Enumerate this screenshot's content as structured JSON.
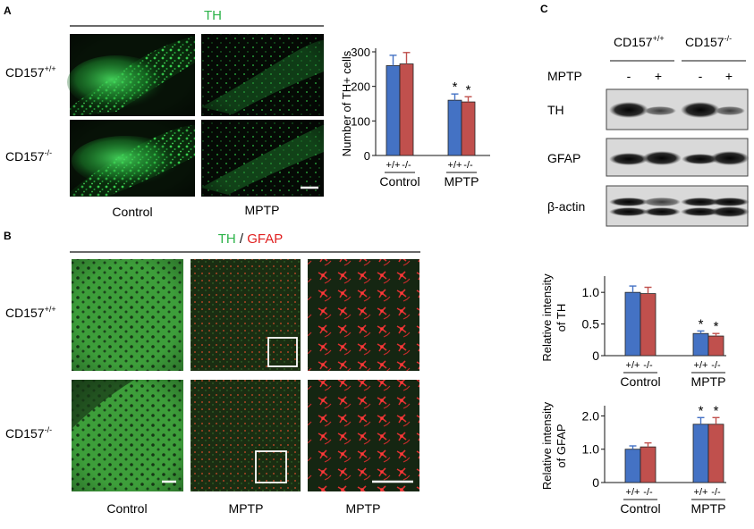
{
  "panel_a": {
    "label": "A",
    "stain": "TH",
    "rows": [
      "CD157",
      "CD157"
    ],
    "row_sup": [
      "+/+",
      "-/-"
    ],
    "cols": [
      "Control",
      "MPTP"
    ]
  },
  "panel_b": {
    "label": "B",
    "stain_1": "TH",
    "slash": " / ",
    "stain_2": "GFAP",
    "rows": [
      "CD157",
      "CD157"
    ],
    "row_sup": [
      "+/+",
      "-/-"
    ],
    "cols": [
      "Control",
      "MPTP",
      "MPTP"
    ]
  },
  "panel_c": {
    "label": "C",
    "groups": [
      "CD157",
      "CD157"
    ],
    "group_sup": [
      "+/+",
      "-/-"
    ],
    "mptp_label": "MPTP",
    "mptp_signs": [
      "-",
      "+",
      "-",
      "+"
    ],
    "blots": [
      "TH",
      "GFAP",
      "β-actin"
    ]
  },
  "colors": {
    "wt": "#4472c4",
    "ko": "#c0504d",
    "th_green": "#2db34a",
    "gfap_red": "#e02020"
  },
  "chart_data": [
    {
      "type": "bar",
      "title": "",
      "ylabel": "Number of TH+ cells",
      "ylim": [
        0,
        300
      ],
      "yticks": [
        "0",
        "100",
        "200",
        "300"
      ],
      "groups": [
        "Control",
        "MPTP"
      ],
      "group_ticks": [
        [
          "+/+",
          "-/-"
        ],
        [
          "+/+",
          "-/-"
        ]
      ],
      "series": [
        {
          "values": [
            260,
            160
          ],
          "errors": [
            30,
            18
          ]
        },
        {
          "values": [
            265,
            155
          ],
          "errors": [
            33,
            15
          ]
        }
      ],
      "significance": [
        "",
        "*"
      ]
    },
    {
      "type": "bar",
      "title": "",
      "ylabel_1": "Relative intensity",
      "ylabel_2": "of TH",
      "ylim": [
        0,
        1.2
      ],
      "yticks": [
        "0",
        "0.5",
        "1.0"
      ],
      "groups": [
        "Control",
        "MPTP"
      ],
      "group_ticks": [
        [
          "+/+",
          "-/-"
        ],
        [
          "+/+",
          "-/-"
        ]
      ],
      "series": [
        {
          "values": [
            1.0,
            0.35
          ],
          "errors": [
            0.1,
            0.04
          ]
        },
        {
          "values": [
            0.98,
            0.31
          ],
          "errors": [
            0.1,
            0.04
          ]
        }
      ],
      "significance": [
        "",
        "*"
      ]
    },
    {
      "type": "bar",
      "title": "",
      "ylabel_1": "Relative intensity",
      "ylabel_2": "of GFAP",
      "ylim": [
        0,
        2.2
      ],
      "yticks": [
        "0",
        "1.0",
        "2.0"
      ],
      "groups": [
        "Control",
        "MPTP"
      ],
      "group_ticks": [
        [
          "+/+",
          "-/-"
        ],
        [
          "+/+",
          "-/-"
        ]
      ],
      "series": [
        {
          "values": [
            1.0,
            1.75
          ],
          "errors": [
            0.1,
            0.2
          ]
        },
        {
          "values": [
            1.07,
            1.75
          ],
          "errors": [
            0.12,
            0.2
          ]
        }
      ],
      "significance": [
        "",
        "*"
      ]
    }
  ]
}
